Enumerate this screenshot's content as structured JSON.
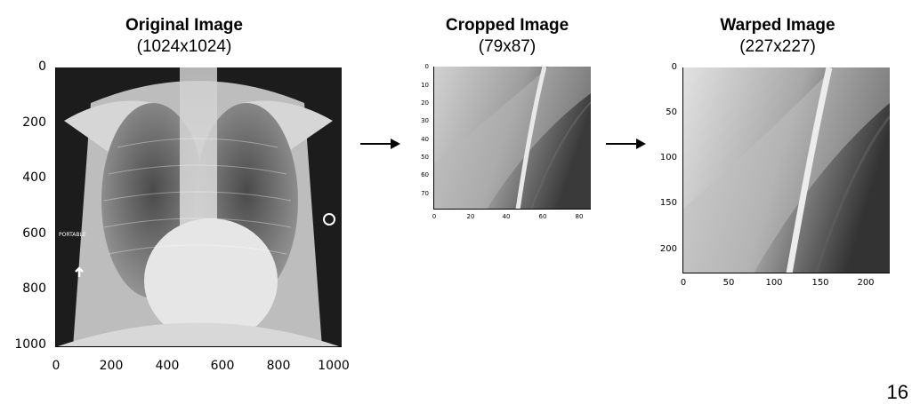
{
  "panels": {
    "original": {
      "title": "Original Image",
      "size": "(1024x1024)",
      "y_ticks": [
        "0",
        "200",
        "400",
        "600",
        "800",
        "1000"
      ],
      "x_ticks": [
        "0",
        "200",
        "400",
        "600",
        "800",
        "1000"
      ],
      "overlay_text": "PORTABLE"
    },
    "cropped": {
      "title": "Cropped Image",
      "size": "(79x87)",
      "y_ticks": [
        "0",
        "10",
        "20",
        "30",
        "40",
        "50",
        "60",
        "70"
      ],
      "x_ticks": [
        "0",
        "20",
        "40",
        "60",
        "80"
      ]
    },
    "warped": {
      "title": "Warped Image",
      "size": "(227x227)",
      "y_ticks": [
        "0",
        "50",
        "100",
        "150",
        "200"
      ],
      "x_ticks": [
        "0",
        "50",
        "100",
        "150",
        "200"
      ]
    }
  },
  "arrows": [
    "arrow-right-icon",
    "arrow-right-icon"
  ],
  "page_number": "16"
}
